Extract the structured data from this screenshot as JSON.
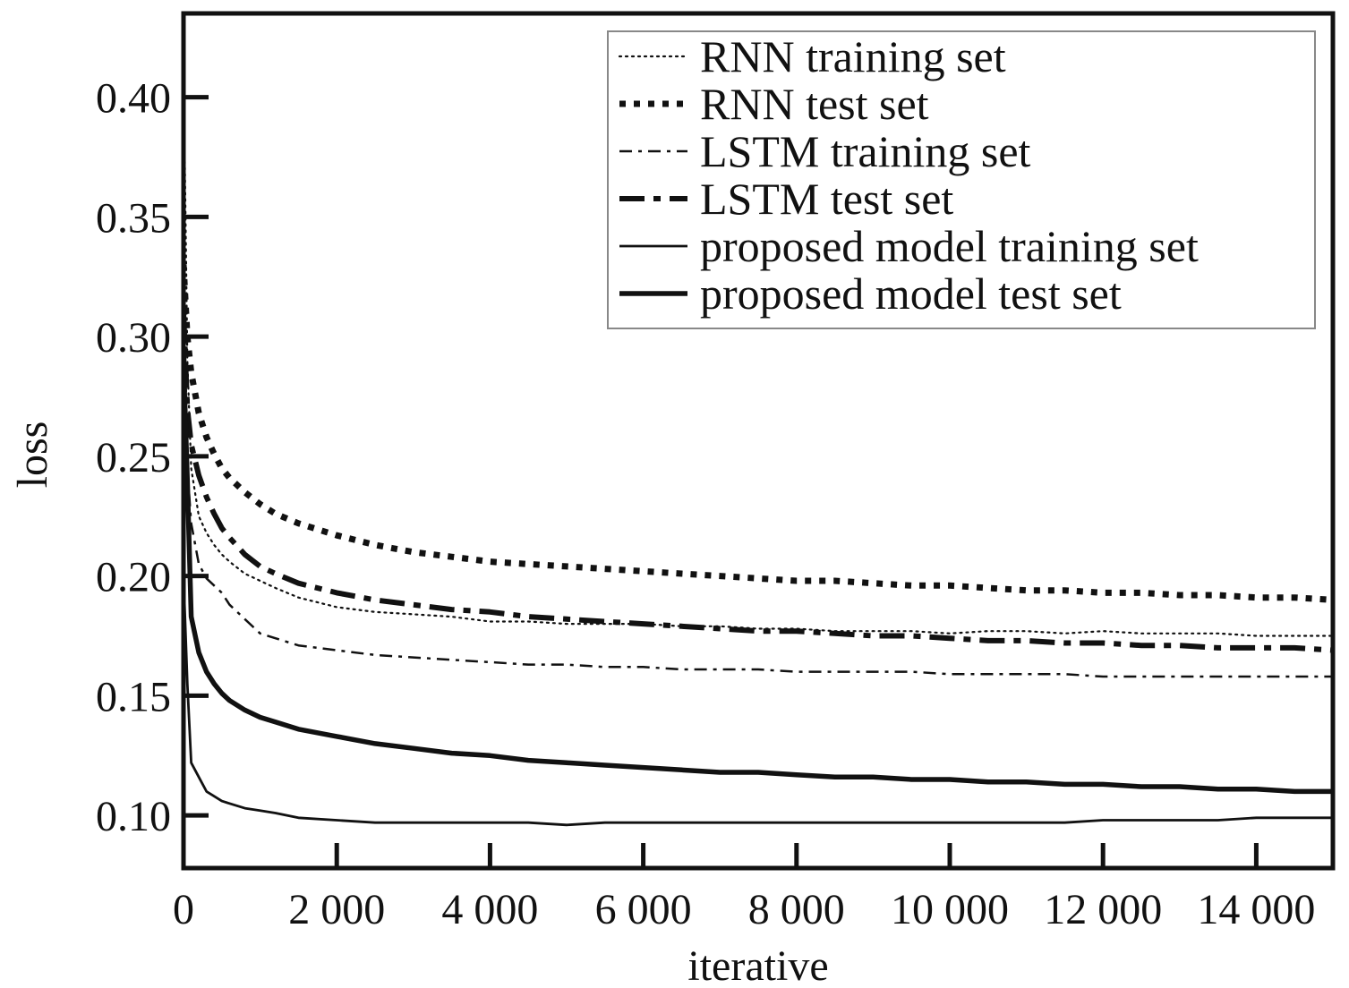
{
  "chart_data": {
    "type": "line",
    "xlabel": "iterative",
    "ylabel": "loss",
    "xlim": [
      0,
      15000
    ],
    "ylim": [
      0.078,
      0.435
    ],
    "x_ticks": [
      0,
      2000,
      4000,
      6000,
      8000,
      10000,
      12000,
      14000
    ],
    "x_tick_labels": [
      "0",
      "2 000",
      "4 000",
      "6 000",
      "8 000",
      "10 000",
      "12 000",
      "14 000"
    ],
    "y_ticks": [
      0.1,
      0.15,
      0.2,
      0.25,
      0.3,
      0.35,
      0.4
    ],
    "y_tick_labels": [
      "0.10",
      "0.15",
      "0.20",
      "0.25",
      "0.30",
      "0.35",
      "0.40"
    ],
    "grid": false,
    "legend_position": "top-right",
    "series": [
      {
        "name": "RNN training set",
        "style": "dotted-thin",
        "x": [
          0,
          50,
          100,
          200,
          300,
          400,
          500,
          600,
          800,
          1000,
          1200,
          1500,
          2000,
          2500,
          3000,
          3500,
          4000,
          4500,
          5000,
          5500,
          6000,
          6500,
          7000,
          7500,
          8000,
          8500,
          9000,
          9500,
          10000,
          10500,
          11000,
          11500,
          12000,
          12500,
          13000,
          13500,
          14000,
          14500,
          15000
        ],
        "y": [
          0.415,
          0.29,
          0.245,
          0.225,
          0.218,
          0.213,
          0.209,
          0.206,
          0.201,
          0.198,
          0.195,
          0.191,
          0.187,
          0.185,
          0.184,
          0.183,
          0.181,
          0.181,
          0.18,
          0.18,
          0.18,
          0.179,
          0.179,
          0.178,
          0.178,
          0.177,
          0.177,
          0.177,
          0.176,
          0.177,
          0.177,
          0.176,
          0.177,
          0.176,
          0.176,
          0.176,
          0.175,
          0.175,
          0.175
        ]
      },
      {
        "name": "RNN test set",
        "style": "dotted-thick",
        "x": [
          0,
          50,
          100,
          200,
          300,
          400,
          500,
          600,
          800,
          1000,
          1200,
          1500,
          2000,
          2500,
          3000,
          3500,
          4000,
          4500,
          5000,
          5500,
          6000,
          6500,
          7000,
          7500,
          8000,
          8500,
          9000,
          9500,
          10000,
          10500,
          11000,
          11500,
          12000,
          12500,
          13000,
          13500,
          14000,
          14500,
          15000
        ],
        "y": [
          0.33,
          0.3,
          0.285,
          0.268,
          0.258,
          0.251,
          0.245,
          0.241,
          0.235,
          0.23,
          0.226,
          0.222,
          0.217,
          0.213,
          0.21,
          0.208,
          0.206,
          0.205,
          0.204,
          0.203,
          0.202,
          0.201,
          0.2,
          0.199,
          0.198,
          0.198,
          0.197,
          0.196,
          0.196,
          0.195,
          0.194,
          0.194,
          0.193,
          0.193,
          0.192,
          0.192,
          0.191,
          0.191,
          0.19
        ]
      },
      {
        "name": "LSTM training set",
        "style": "dashdot-thin",
        "x": [
          0,
          50,
          100,
          200,
          300,
          400,
          500,
          600,
          800,
          1000,
          1200,
          1500,
          2000,
          2500,
          3000,
          3500,
          4000,
          4500,
          5000,
          5500,
          6000,
          6500,
          7000,
          7500,
          8000,
          8500,
          9000,
          9500,
          10000,
          10500,
          11000,
          11500,
          12000,
          12500,
          13000,
          13500,
          14000,
          14500,
          15000
        ],
        "y": [
          0.33,
          0.245,
          0.222,
          0.205,
          0.199,
          0.196,
          0.193,
          0.188,
          0.182,
          0.176,
          0.174,
          0.171,
          0.169,
          0.167,
          0.166,
          0.165,
          0.164,
          0.163,
          0.163,
          0.162,
          0.162,
          0.161,
          0.161,
          0.161,
          0.16,
          0.16,
          0.16,
          0.16,
          0.159,
          0.159,
          0.159,
          0.159,
          0.158,
          0.158,
          0.158,
          0.158,
          0.158,
          0.158,
          0.158
        ]
      },
      {
        "name": "LSTM test set",
        "style": "dashdot-thick",
        "x": [
          0,
          50,
          100,
          200,
          300,
          400,
          500,
          600,
          800,
          1000,
          1200,
          1500,
          2000,
          2500,
          3000,
          3500,
          4000,
          4500,
          5000,
          5500,
          6000,
          6500,
          7000,
          7500,
          8000,
          8500,
          9000,
          9500,
          10000,
          10500,
          11000,
          11500,
          12000,
          12500,
          13000,
          13500,
          14000,
          14500,
          15000
        ],
        "y": [
          0.31,
          0.27,
          0.255,
          0.242,
          0.233,
          0.226,
          0.22,
          0.216,
          0.209,
          0.204,
          0.201,
          0.197,
          0.193,
          0.19,
          0.188,
          0.186,
          0.185,
          0.183,
          0.182,
          0.181,
          0.18,
          0.179,
          0.178,
          0.177,
          0.177,
          0.176,
          0.175,
          0.175,
          0.174,
          0.173,
          0.173,
          0.172,
          0.172,
          0.171,
          0.171,
          0.17,
          0.17,
          0.17,
          0.169
        ]
      },
      {
        "name": "proposed model training set",
        "style": "solid-thin",
        "x": [
          0,
          50,
          100,
          200,
          300,
          400,
          500,
          600,
          800,
          1000,
          1200,
          1500,
          2000,
          2500,
          3000,
          3500,
          4000,
          4500,
          5000,
          5500,
          6000,
          6500,
          7000,
          7500,
          8000,
          8500,
          9000,
          9500,
          10000,
          10500,
          11000,
          11500,
          12000,
          12500,
          13000,
          13500,
          14000,
          14500,
          15000
        ],
        "y": [
          0.2,
          0.155,
          0.122,
          0.116,
          0.11,
          0.108,
          0.106,
          0.105,
          0.103,
          0.102,
          0.101,
          0.099,
          0.098,
          0.097,
          0.097,
          0.097,
          0.097,
          0.097,
          0.096,
          0.097,
          0.097,
          0.097,
          0.097,
          0.097,
          0.097,
          0.097,
          0.097,
          0.097,
          0.097,
          0.097,
          0.097,
          0.097,
          0.098,
          0.098,
          0.098,
          0.098,
          0.099,
          0.099,
          0.099
        ]
      },
      {
        "name": "proposed model test set",
        "style": "solid-thick",
        "x": [
          0,
          50,
          100,
          200,
          300,
          400,
          500,
          600,
          800,
          1000,
          1200,
          1500,
          2000,
          2500,
          3000,
          3500,
          4000,
          4500,
          5000,
          5500,
          6000,
          6500,
          7000,
          7500,
          8000,
          8500,
          9000,
          9500,
          10000,
          10500,
          11000,
          11500,
          12000,
          12500,
          13000,
          13500,
          14000,
          14500,
          15000
        ],
        "y": [
          0.29,
          0.24,
          0.183,
          0.168,
          0.16,
          0.155,
          0.151,
          0.148,
          0.144,
          0.141,
          0.139,
          0.136,
          0.133,
          0.13,
          0.128,
          0.126,
          0.125,
          0.123,
          0.122,
          0.121,
          0.12,
          0.119,
          0.118,
          0.118,
          0.117,
          0.116,
          0.116,
          0.115,
          0.115,
          0.114,
          0.114,
          0.113,
          0.113,
          0.112,
          0.112,
          0.111,
          0.111,
          0.11,
          0.11
        ]
      }
    ]
  }
}
